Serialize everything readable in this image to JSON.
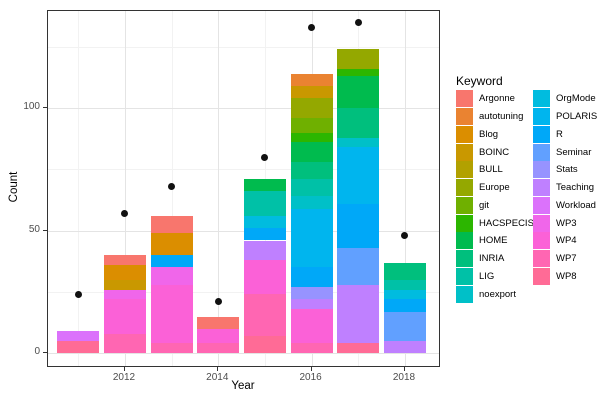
{
  "chart_data": {
    "type": "bar",
    "subtype": "stacked-bars-with-total-points",
    "title": "",
    "xlabel": "Year",
    "ylabel": "Count",
    "x_major_ticks": [
      2012,
      2014,
      2016,
      2018
    ],
    "x_minor_gridlines": [
      2011,
      2013,
      2015,
      2017
    ],
    "y_major_ticks": [
      0,
      50,
      100
    ],
    "y_minor_gridlines": [
      25,
      75,
      125
    ],
    "xlim": [
      2010.35,
      2018.65
    ],
    "ylim": [
      -6,
      140
    ],
    "grid": "on",
    "legend_position": "right",
    "legend_title": "Keyword",
    "legend_columns": [
      [
        "Argonne",
        "autotuning",
        "Blog",
        "BOINC",
        "BULL",
        "Europe",
        "git",
        "HACSPECIS",
        "HOME",
        "INRIA",
        "LIG",
        "noexport"
      ],
      [
        "OrgMode",
        "POLARIS",
        "R",
        "Seminar",
        "Stats",
        "Teaching",
        "Workload",
        "WP3",
        "WP4",
        "WP7",
        "WP8"
      ]
    ],
    "keyword_colors": {
      "Argonne": "#F8766D",
      "autotuning": "#EA8331",
      "Blog": "#DB8E00",
      "BOINC": "#C99800",
      "BULL": "#B2A100",
      "Europe": "#94A800",
      "git": "#6FB000",
      "HACSPECIS": "#2CB600",
      "HOME": "#00BB4E",
      "INRIA": "#00BF7D",
      "LIG": "#00C1A7",
      "noexport": "#00C0C8",
      "OrgMode": "#00BCDF",
      "POLARIS": "#00B5EE",
      "R": "#00A8F8",
      "Seminar": "#61A0FF",
      "Stats": "#9793FF",
      "Teaching": "#BF80FF",
      "Workload": "#DB72FB",
      "WP3": "#F066EA",
      "WP4": "#FB61D7",
      "WP7": "#FF66B2",
      "WP8": "#FF6B96"
    },
    "bars": [
      {
        "year": 2011,
        "total": 9,
        "segments": [
          {
            "keyword": "Workload",
            "value": 4
          },
          {
            "keyword": "WP8",
            "value": 5
          }
        ]
      },
      {
        "year": 2012,
        "total": 40,
        "segments": [
          {
            "keyword": "Argonne",
            "value": 4
          },
          {
            "keyword": "Blog",
            "value": 6
          },
          {
            "keyword": "BOINC",
            "value": 4
          },
          {
            "keyword": "WP3",
            "value": 4
          },
          {
            "keyword": "WP4",
            "value": 14
          },
          {
            "keyword": "WP7",
            "value": 8
          }
        ]
      },
      {
        "year": 2013,
        "total": 56,
        "segments": [
          {
            "keyword": "Argonne",
            "value": 7
          },
          {
            "keyword": "Blog",
            "value": 9
          },
          {
            "keyword": "R",
            "value": 5
          },
          {
            "keyword": "WP3",
            "value": 7
          },
          {
            "keyword": "WP4",
            "value": 24
          },
          {
            "keyword": "WP7",
            "value": 4
          }
        ]
      },
      {
        "year": 2014,
        "total": 15,
        "segments": [
          {
            "keyword": "Argonne",
            "value": 5
          },
          {
            "keyword": "WP4",
            "value": 6
          },
          {
            "keyword": "WP7",
            "value": 4
          }
        ]
      },
      {
        "year": 2015,
        "total": 71,
        "segments": [
          {
            "keyword": "HOME",
            "value": 5
          },
          {
            "keyword": "LIG",
            "value": 10
          },
          {
            "keyword": "OrgMode",
            "value": 5
          },
          {
            "keyword": "R",
            "value": 5
          },
          {
            "keyword": "Teaching",
            "value": 8
          },
          {
            "keyword": "WP4",
            "value": 14
          },
          {
            "keyword": "WP7",
            "value": 17
          },
          {
            "keyword": "WP8",
            "value": 7
          }
        ]
      },
      {
        "year": 2016,
        "total": 114,
        "segments": [
          {
            "keyword": "autotuning",
            "value": 5
          },
          {
            "keyword": "BOINC",
            "value": 5
          },
          {
            "keyword": "Europe",
            "value": 8
          },
          {
            "keyword": "git",
            "value": 6
          },
          {
            "keyword": "HACSPECIS",
            "value": 4
          },
          {
            "keyword": "HOME",
            "value": 8
          },
          {
            "keyword": "INRIA",
            "value": 7
          },
          {
            "keyword": "LIG",
            "value": 7
          },
          {
            "keyword": "noexport",
            "value": 5
          },
          {
            "keyword": "POLARIS",
            "value": 24
          },
          {
            "keyword": "R",
            "value": 8
          },
          {
            "keyword": "Stats",
            "value": 5
          },
          {
            "keyword": "Teaching",
            "value": 4
          },
          {
            "keyword": "WP4",
            "value": 14
          },
          {
            "keyword": "WP7",
            "value": 4
          }
        ]
      },
      {
        "year": 2017,
        "total": 124,
        "segments": [
          {
            "keyword": "Europe",
            "value": 8
          },
          {
            "keyword": "HACSPECIS",
            "value": 3
          },
          {
            "keyword": "HOME",
            "value": 13
          },
          {
            "keyword": "INRIA",
            "value": 12
          },
          {
            "keyword": "noexport",
            "value": 4
          },
          {
            "keyword": "POLARIS",
            "value": 23
          },
          {
            "keyword": "R",
            "value": 18
          },
          {
            "keyword": "Seminar",
            "value": 15
          },
          {
            "keyword": "Teaching",
            "value": 24
          },
          {
            "keyword": "WP8",
            "value": 4
          }
        ]
      },
      {
        "year": 2018,
        "total": 37,
        "segments": [
          {
            "keyword": "INRIA",
            "value": 7
          },
          {
            "keyword": "LIG",
            "value": 4
          },
          {
            "keyword": "OrgMode",
            "value": 4
          },
          {
            "keyword": "R",
            "value": 5
          },
          {
            "keyword": "Seminar",
            "value": 12
          },
          {
            "keyword": "Teaching",
            "value": 5
          }
        ]
      }
    ],
    "points": [
      {
        "year": 2011,
        "value": 24
      },
      {
        "year": 2012,
        "value": 57
      },
      {
        "year": 2013,
        "value": 68
      },
      {
        "year": 2014,
        "value": 21
      },
      {
        "year": 2015,
        "value": 80
      },
      {
        "year": 2016,
        "value": 133
      },
      {
        "year": 2017,
        "value": 135
      },
      {
        "year": 2018,
        "value": 48
      }
    ]
  }
}
